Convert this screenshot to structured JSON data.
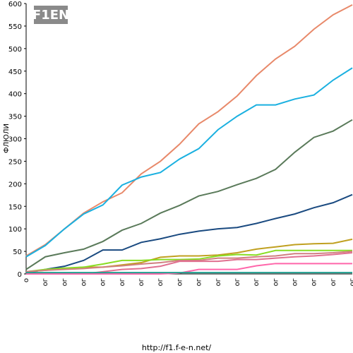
{
  "chart_data": {
    "type": "line",
    "logo": "F1EN",
    "y_label": "ФЛЮЛИ",
    "footer": "http://f1.f-e-n.net/",
    "categories": [
      "о",
      "ог",
      "ог",
      "ог",
      "ог",
      "ог",
      "ог",
      "ог",
      "ог",
      "ог",
      "ог",
      "ог",
      "ог",
      "ог",
      "ог",
      "ог",
      "ог",
      "ог"
    ],
    "ylim": [
      0,
      600
    ],
    "yticks": [
      0,
      50,
      100,
      150,
      200,
      250,
      300,
      350,
      400,
      450,
      500,
      550,
      600
    ],
    "series": [
      {
        "color": "#e8896a",
        "values": [
          40,
          65,
          100,
          135,
          160,
          180,
          222,
          250,
          288,
          333,
          360,
          395,
          440,
          477,
          505,
          543,
          575,
          597
        ]
      },
      {
        "color": "#1ab0e0",
        "values": [
          38,
          63,
          100,
          133,
          153,
          197,
          215,
          225,
          255,
          278,
          320,
          350,
          375,
          375,
          388,
          397,
          430,
          457
        ]
      },
      {
        "color": "#5a7a5a",
        "values": [
          10,
          38,
          47,
          55,
          72,
          97,
          112,
          135,
          152,
          173,
          183,
          198,
          212,
          232,
          270,
          303,
          317,
          342
        ]
      },
      {
        "color": "#1a4a80",
        "values": [
          2,
          10,
          17,
          30,
          53,
          53,
          70,
          78,
          88,
          95,
          100,
          103,
          112,
          123,
          133,
          147,
          158,
          176
        ]
      },
      {
        "color": "#c0a020",
        "values": [
          5,
          8,
          12,
          15,
          15,
          20,
          25,
          37,
          40,
          40,
          42,
          47,
          55,
          60,
          65,
          67,
          68,
          77
        ]
      },
      {
        "color": "#88dd22",
        "values": [
          5,
          10,
          13,
          15,
          22,
          30,
          30,
          32,
          32,
          33,
          40,
          43,
          42,
          52,
          52,
          52,
          52,
          52
        ]
      },
      {
        "color": "#d08080",
        "values": [
          5,
          8,
          10,
          12,
          15,
          18,
          22,
          25,
          30,
          30,
          35,
          35,
          38,
          40,
          45,
          45,
          47,
          50
        ]
      },
      {
        "color": "#e07090",
        "values": [
          0,
          0,
          0,
          0,
          5,
          10,
          12,
          17,
          28,
          28,
          28,
          32,
          32,
          35,
          38,
          40,
          43,
          47
        ]
      },
      {
        "color": "#ff66aa",
        "values": [
          0,
          0,
          0,
          0,
          0,
          0,
          0,
          0,
          2,
          10,
          10,
          10,
          18,
          23,
          23,
          23,
          23,
          23
        ]
      },
      {
        "color": "#20a090",
        "values": [
          3,
          3,
          3,
          3,
          3,
          3,
          3,
          3,
          3,
          3,
          3,
          3,
          3,
          3,
          3,
          3,
          3,
          3
        ]
      }
    ]
  }
}
